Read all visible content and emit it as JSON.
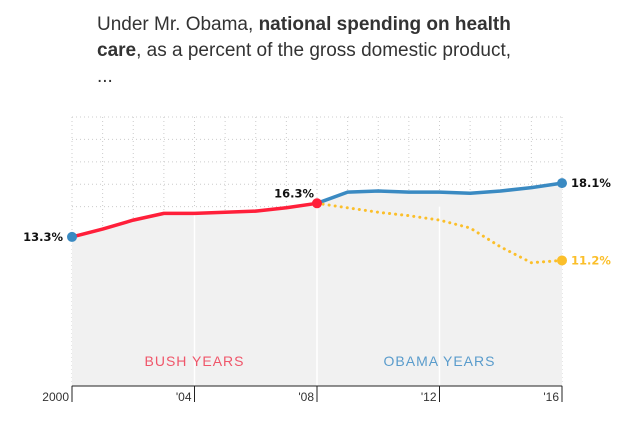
{
  "chart_data": {
    "type": "line",
    "title_parts": [
      "Under Mr. Obama, ",
      "national spending on health care",
      ", as a percent of the gross domestic product, ..."
    ],
    "xlabel": "",
    "ylabel": "",
    "xlim": [
      2000,
      2016
    ],
    "ylim": [
      0,
      24
    ],
    "grid": true,
    "x_ticks": [
      {
        "value": 2000,
        "label": "2000"
      },
      {
        "value": 2004,
        "label": "'04"
      },
      {
        "value": 2008,
        "label": "'08"
      },
      {
        "value": 2012,
        "label": "'12"
      },
      {
        "value": 2016,
        "label": "'16"
      }
    ],
    "series": [
      {
        "key": "bush",
        "color": "#ff1f3a",
        "style": "solid",
        "x": [
          2000,
          2001,
          2002,
          2003,
          2004,
          2005,
          2006,
          2007,
          2008
        ],
        "y": [
          13.3,
          14.0,
          14.8,
          15.4,
          15.4,
          15.5,
          15.6,
          15.9,
          16.3
        ]
      },
      {
        "key": "obama",
        "color": "#3a8ac2",
        "style": "solid",
        "x": [
          2008,
          2009,
          2010,
          2011,
          2012,
          2013,
          2014,
          2015,
          2016
        ],
        "y": [
          16.3,
          17.3,
          17.4,
          17.3,
          17.3,
          17.2,
          17.4,
          17.7,
          18.1
        ]
      },
      {
        "key": "projection",
        "color": "#fbbf2a",
        "style": "dotted",
        "x": [
          2008,
          2009,
          2010,
          2011,
          2012,
          2013,
          2014,
          2015,
          2016
        ],
        "y": [
          16.3,
          15.9,
          15.5,
          15.2,
          14.8,
          14.1,
          12.4,
          11.0,
          11.2
        ]
      }
    ],
    "annotations": [
      {
        "text": "13.3%",
        "x": 2000,
        "y": 13.3,
        "color": "#111111",
        "anchor": "end",
        "dot": "#3a8ac2"
      },
      {
        "text": "16.3%",
        "x": 2008,
        "y": 16.3,
        "color": "#111111",
        "anchor": "end-above",
        "dot": "#ff1f3a"
      },
      {
        "text": "18.1%",
        "x": 2016,
        "y": 18.1,
        "color": "#111111",
        "anchor": "start",
        "dot": "#3a8ac2"
      },
      {
        "text": "11.2%",
        "x": 2016,
        "y": 11.2,
        "color": "#fbbf2a",
        "anchor": "start",
        "dot": "#fbbf2a"
      }
    ],
    "period_labels": [
      {
        "text": "BUSH YEARS",
        "x": 2004,
        "color": "#f0566a"
      },
      {
        "text": "OBAMA YEARS",
        "x": 2012,
        "color": "#5a9ccc"
      }
    ]
  }
}
